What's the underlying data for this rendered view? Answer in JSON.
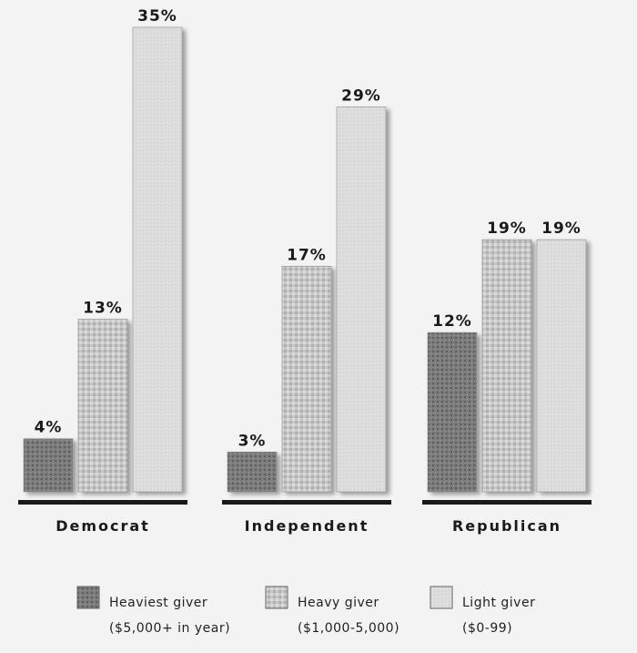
{
  "chart_data": {
    "type": "bar",
    "title": "",
    "xlabel": "",
    "ylabel": "",
    "ylim": [
      0,
      35
    ],
    "grid": false,
    "legend_position": "bottom",
    "categories": [
      "Democrat",
      "Independent",
      "Republican"
    ],
    "series": [
      {
        "name": "Heaviest giver",
        "sub": "($5,000+ in year)",
        "values": [
          4,
          3,
          12
        ],
        "labels": [
          "4%",
          "3%",
          "12%"
        ],
        "color": "#7d7d7d"
      },
      {
        "name": "Heavy giver",
        "sub": "($1,000-5,000)",
        "values": [
          13,
          17,
          19
        ],
        "labels": [
          "13%",
          "17%",
          "19%"
        ],
        "color": "#c3c3c3"
      },
      {
        "name": "Light giver",
        "sub": "($0-99)",
        "values": [
          35,
          29,
          19
        ],
        "labels": [
          "35%",
          "29%",
          "19%"
        ],
        "color": "#dedede"
      }
    ]
  }
}
